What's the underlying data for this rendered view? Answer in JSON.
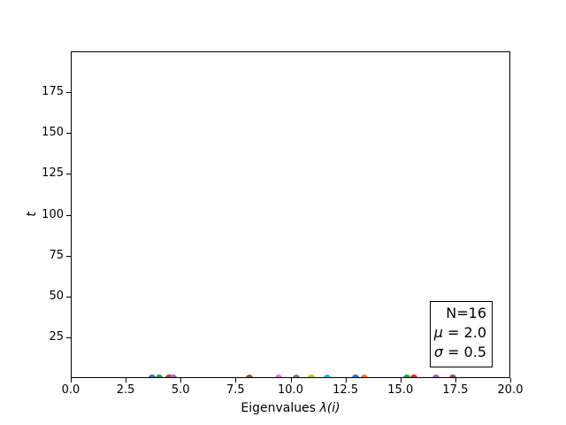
{
  "figure": {
    "background": "#ffffff",
    "axis_color": "#000000"
  },
  "chart_data": {
    "type": "scatter",
    "title": "",
    "xlabel": {
      "prefix": "Eigenvalues ",
      "math": "λ(i)"
    },
    "ylabel": "t",
    "xlim": [
      0.0,
      20.0
    ],
    "ylim": [
      0,
      200
    ],
    "grid": false,
    "legend_position": "none",
    "xticks": [
      {
        "value": 0.0,
        "label": "0.0"
      },
      {
        "value": 2.5,
        "label": "2.5"
      },
      {
        "value": 5.0,
        "label": "5.0"
      },
      {
        "value": 7.5,
        "label": "7.5"
      },
      {
        "value": 10.0,
        "label": "10.0"
      },
      {
        "value": 12.5,
        "label": "12.5"
      },
      {
        "value": 15.0,
        "label": "15.0"
      },
      {
        "value": 17.5,
        "label": "17.5"
      },
      {
        "value": 20.0,
        "label": "20.0"
      }
    ],
    "yticks": [
      {
        "value": 25,
        "label": "25"
      },
      {
        "value": 50,
        "label": "50"
      },
      {
        "value": 75,
        "label": "75"
      },
      {
        "value": 100,
        "label": "100"
      },
      {
        "value": 125,
        "label": "125"
      },
      {
        "value": 150,
        "label": "150"
      },
      {
        "value": 175,
        "label": "175"
      }
    ],
    "annotation": {
      "lines": [
        {
          "math": "",
          "text": "N=16"
        },
        {
          "math": "μ",
          "text": " = 2.0"
        },
        {
          "math": "σ",
          "text": " = 0.5"
        }
      ]
    },
    "points": [
      {
        "x": 3.72,
        "t": 0,
        "color": "#1f77b4"
      },
      {
        "x": 4.03,
        "t": 0,
        "color": "#2ca02c"
      },
      {
        "x": 4.52,
        "t": 0,
        "color": "#ff7f0e"
      },
      {
        "x": 4.45,
        "t": 0,
        "color": "#d62728"
      },
      {
        "x": 4.65,
        "t": 0,
        "color": "#9467bd"
      },
      {
        "x": 8.12,
        "t": 0,
        "color": "#8c564b"
      },
      {
        "x": 9.47,
        "t": 0,
        "color": "#e377c2"
      },
      {
        "x": 10.28,
        "t": 0,
        "color": "#7f7f7f"
      },
      {
        "x": 10.95,
        "t": 0,
        "color": "#bcbd22"
      },
      {
        "x": 11.68,
        "t": 0,
        "color": "#17becf"
      },
      {
        "x": 12.97,
        "t": 0,
        "color": "#1f77b4"
      },
      {
        "x": 13.38,
        "t": 0,
        "color": "#ff7f0e"
      },
      {
        "x": 15.3,
        "t": 0,
        "color": "#2ca02c"
      },
      {
        "x": 15.6,
        "t": 0,
        "color": "#d62728"
      },
      {
        "x": 16.62,
        "t": 0,
        "color": "#9467bd"
      },
      {
        "x": 17.38,
        "t": 0,
        "color": "#8c564b"
      }
    ]
  }
}
